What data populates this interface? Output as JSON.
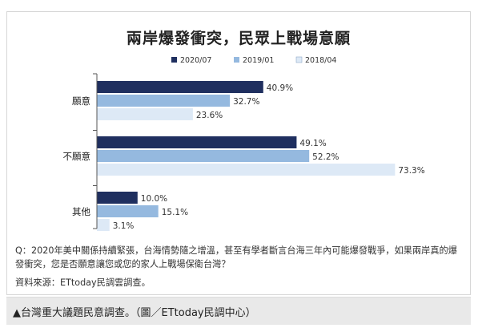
{
  "chart_data": {
    "type": "bar",
    "orientation": "horizontal",
    "title": "兩岸爆發衝突，民眾上戰場意願",
    "categories": [
      "願意",
      "不願意",
      "其他"
    ],
    "series": [
      {
        "name": "2020/07",
        "color": "#1f2f5f",
        "values": [
          40.9,
          49.1,
          10.0
        ],
        "labels": [
          "40.9%",
          "49.1%",
          "10.0%"
        ]
      },
      {
        "name": "2019/01",
        "color": "#95b9df",
        "values": [
          32.7,
          52.2,
          15.1
        ],
        "labels": [
          "32.7%",
          "52.2%",
          "15.1%"
        ]
      },
      {
        "name": "2018/04",
        "color": "#dde9f6",
        "values": [
          23.6,
          73.3,
          3.1
        ],
        "labels": [
          "23.6%",
          "73.3%",
          "3.1%"
        ]
      }
    ],
    "xlim": [
      0,
      80
    ],
    "grid": false,
    "legend": "top-center"
  },
  "question": "Q：2020年美中關係持續緊張，台海情勢隨之增溫，甚至有學者斷言台海三年內可能爆發戰爭，如果兩岸真的爆發衝突，您是否願意讓您或您的家人上戰場保衛台灣？",
  "source": "資料來源：ETtoday民調雲調查。",
  "caption": "▲台灣重大議題民意調查。（圖／ETtoday民調中心）"
}
